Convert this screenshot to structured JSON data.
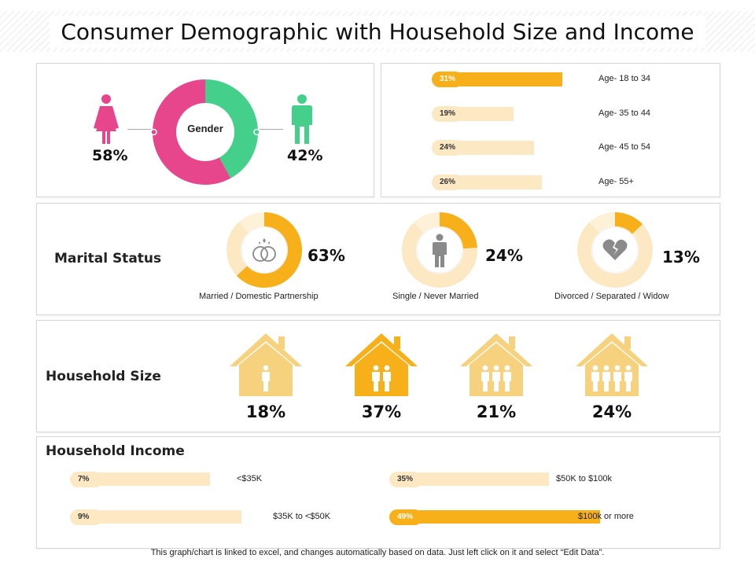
{
  "title": "Consumer Demographic with Household Size and Income",
  "footer": "This graph/chart is linked to excel, and changes automatically based on data. Just left click on it and select “Edit Data”.",
  "colors": {
    "accent": "#f8b01a",
    "light": "#fce8c3",
    "female": "#e8468c",
    "male": "#44d08b",
    "house": "#f7d27e"
  },
  "gender": {
    "center_label": "Gender",
    "female_pct": "58%",
    "male_pct": "42%"
  },
  "age": [
    {
      "pct": "31%",
      "label": "Age- 18 to 34"
    },
    {
      "pct": "19%",
      "label": "Age- 35 to 44"
    },
    {
      "pct": "24%",
      "label": "Age- 45 to 54"
    },
    {
      "pct": "26%",
      "label": "Age- 55+"
    }
  ],
  "marital": {
    "title": "Marital Status",
    "items": [
      {
        "pct": "63%",
        "label": "Married / Domestic Partnership",
        "icon": "rings-icon"
      },
      {
        "pct": "24%",
        "label": "Single / Never Married",
        "icon": "person-icon"
      },
      {
        "pct": "13%",
        "label": "Divorced / Separated / Widow",
        "icon": "broken-heart-icon"
      }
    ]
  },
  "household_size": {
    "title": "Household Size",
    "items": [
      {
        "pct": "18%",
        "people": 1
      },
      {
        "pct": "37%",
        "people": 2
      },
      {
        "pct": "21%",
        "people": 3
      },
      {
        "pct": "24%",
        "people": 4
      }
    ]
  },
  "household_income": {
    "title": "Household Income",
    "items": [
      {
        "pct": "7%",
        "label": "<$35K"
      },
      {
        "pct": "9%",
        "label": "$35K to <$50K"
      },
      {
        "pct": "35%",
        "label": "$50K to $100k"
      },
      {
        "pct": "49%",
        "label": "$100k or more"
      }
    ]
  },
  "chart_data": [
    {
      "type": "pie",
      "title": "Gender",
      "categories": [
        "Female",
        "Male"
      ],
      "values": [
        58,
        42
      ]
    },
    {
      "type": "bar",
      "categories": [
        "Age- 18 to 34",
        "Age- 35 to 44",
        "Age- 45 to 54",
        "Age- 55+"
      ],
      "values": [
        31,
        19,
        24,
        26
      ]
    },
    {
      "type": "pie",
      "title": "Marital Status",
      "categories": [
        "Married / Domestic Partnership",
        "Single / Never Married",
        "Divorced / Separated / Widow"
      ],
      "values": [
        63,
        24,
        13
      ]
    },
    {
      "type": "bar",
      "title": "Household Size",
      "categories": [
        "1",
        "2",
        "3",
        "4"
      ],
      "values": [
        18,
        37,
        21,
        24
      ]
    },
    {
      "type": "bar",
      "title": "Household Income",
      "categories": [
        "<$35K",
        "$35K to <$50K",
        "$50K to $100k",
        "$100k or more"
      ],
      "values": [
        7,
        9,
        35,
        49
      ]
    }
  ]
}
